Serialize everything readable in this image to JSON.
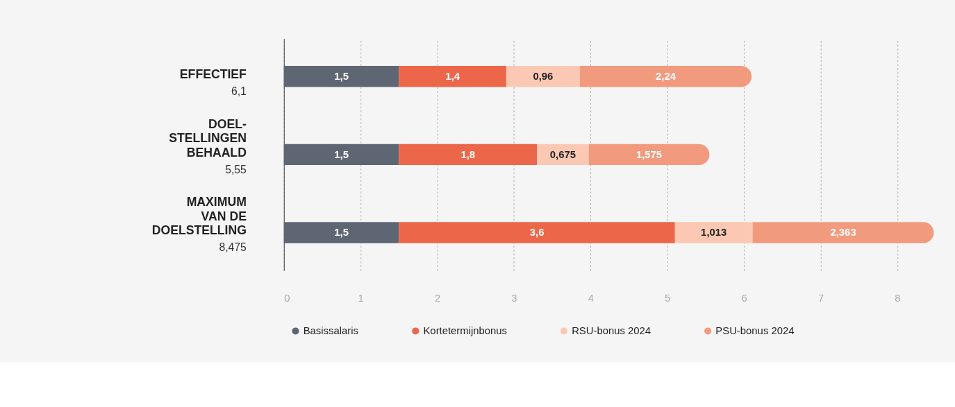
{
  "chart_data": {
    "type": "bar",
    "orientation": "horizontal",
    "stacked": true,
    "categories": [
      "EFFECTIEF",
      "DOEL-STELLINGEN BEHAALD",
      "MAXIMUM VAN DE DOELSTELLING"
    ],
    "annotations": [
      "6,1",
      "5,55",
      "8,475"
    ],
    "series": [
      {
        "name": "Basissalaris",
        "color": "#5f6673",
        "values": [
          1.5,
          1.5,
          1.5
        ],
        "value_labels": [
          "1,5",
          "1,5",
          "1,5"
        ]
      },
      {
        "name": "Kortetermijnbonus",
        "color": "#ec664a",
        "values": [
          1.4,
          1.8,
          3.6
        ],
        "value_labels": [
          "1,4",
          "1,8",
          "3,6"
        ]
      },
      {
        "name": "RSU-bonus 2024",
        "color": "#fbc9b3",
        "values": [
          0.96,
          0.675,
          1.013
        ],
        "value_labels": [
          "0,96",
          "0,675",
          "1,013"
        ]
      },
      {
        "name": "PSU-bonus 2024",
        "color": "#f29a7d",
        "values": [
          2.24,
          1.575,
          2.363
        ],
        "value_labels": [
          "2,24",
          "1,575",
          "2,363"
        ]
      }
    ],
    "xlim": [
      0,
      8.5
    ],
    "xticks": [
      0,
      1,
      2,
      3,
      4,
      5,
      6,
      7,
      8
    ],
    "grid": "x",
    "legend": "bottom"
  }
}
